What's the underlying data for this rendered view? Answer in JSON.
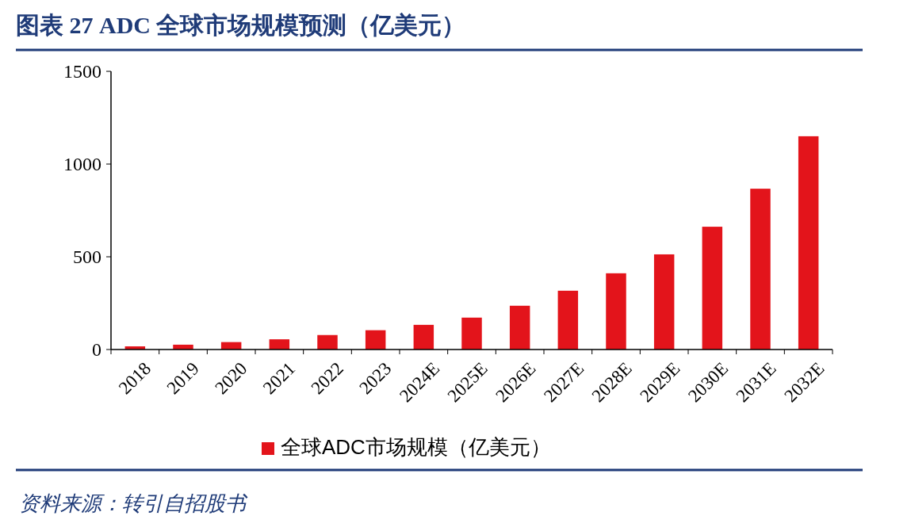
{
  "chart_data": {
    "type": "bar",
    "title": "图表 27   ADC 全球市场规模预测（亿美元）",
    "categories": [
      "2018",
      "2019",
      "2020",
      "2021",
      "2022",
      "2023",
      "2024E",
      "2025E",
      "2026E",
      "2027E",
      "2028E",
      "2029E",
      "2030E",
      "2031E",
      "2032E"
    ],
    "series": [
      {
        "name": "全球ADC市场规模（亿美元）",
        "color": "#e3141b",
        "values": [
          17,
          26,
          40,
          55,
          78,
          104,
          133,
          172,
          236,
          317,
          411,
          513,
          662,
          867,
          1150
        ]
      }
    ],
    "ylim": [
      0,
      1500
    ],
    "yticks": [
      0,
      500,
      1000,
      1500
    ],
    "grid": false,
    "legend": "bottom",
    "annotations": [
      "资料来源：转引自招股书"
    ]
  }
}
